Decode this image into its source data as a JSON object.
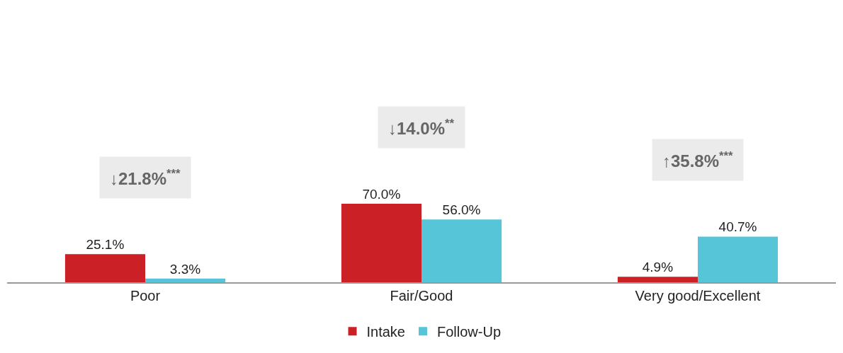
{
  "chart_data": {
    "type": "bar",
    "categories": [
      "Poor",
      "Fair/Good",
      "Very good/Excellent"
    ],
    "series": [
      {
        "name": "Intake",
        "color": "#cc2027",
        "values": [
          25.1,
          70.0,
          4.9
        ],
        "value_labels": [
          "25.1%",
          "70.0%",
          "4.9%"
        ]
      },
      {
        "name": "Follow-Up",
        "color": "#56c5d8",
        "values": [
          3.3,
          56.0,
          40.7
        ],
        "value_labels": [
          "3.3%",
          "56.0%",
          "40.7%"
        ]
      }
    ],
    "annotations": [
      "↓21.8%$^{***}$",
      "↓14.0%$^{**}$",
      "↑35.8%$^{***}$"
    ],
    "grid": false,
    "legend": "bottom"
  }
}
